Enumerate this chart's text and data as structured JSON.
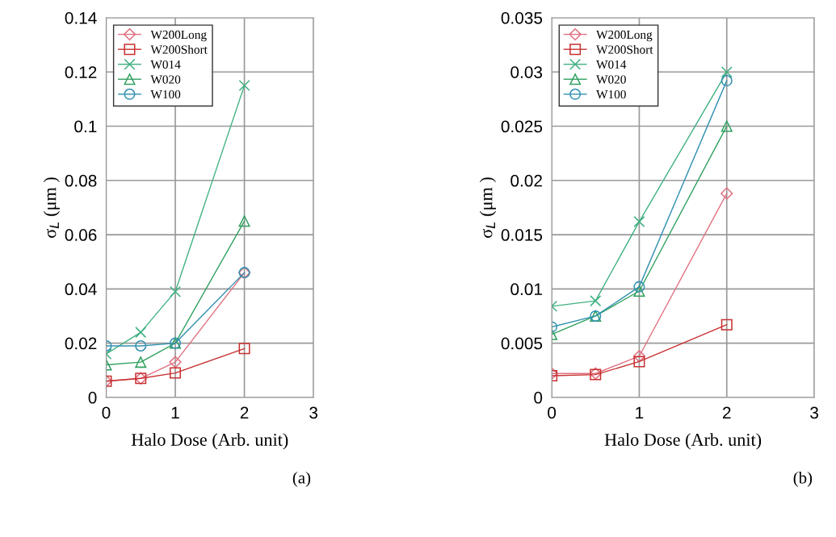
{
  "chart_data": [
    {
      "type": "line",
      "xlabel": "Halo Dose (Arb. unit)",
      "ylabel": "σ$_{L}$ (μm )",
      "x": [
        0,
        0.5,
        1,
        2
      ],
      "xlim": [
        0,
        3
      ],
      "xticks": [
        0,
        1,
        2,
        3
      ],
      "ylim": [
        0,
        0.14
      ],
      "yticks": [
        0,
        0.02,
        0.04,
        0.06,
        0.08,
        0.1,
        0.12,
        0.14
      ],
      "grid": true,
      "legend": "top left",
      "annotations": [
        "(a)"
      ],
      "series": [
        {
          "name": "W200Long",
          "color": "#e07080",
          "marker": "diamond",
          "values": [
            0.006,
            0.007,
            0.013,
            0.046
          ]
        },
        {
          "name": "W200Short",
          "color": "#c83030",
          "marker": "square",
          "values": [
            0.006,
            0.007,
            0.009,
            0.018
          ]
        },
        {
          "name": "W014",
          "color": "#40b080",
          "marker": "cross",
          "values": [
            0.016,
            0.024,
            0.039,
            0.115
          ]
        },
        {
          "name": "W020",
          "color": "#30a060",
          "marker": "triangle",
          "values": [
            0.012,
            0.013,
            0.02,
            0.065
          ]
        },
        {
          "name": "W100",
          "color": "#3090b0",
          "marker": "circle",
          "values": [
            0.019,
            0.019,
            0.02,
            0.046
          ]
        }
      ]
    },
    {
      "type": "line",
      "xlabel": "Halo Dose (Arb. unit)",
      "ylabel": "σ$_{L}$ (μm )",
      "x": [
        0,
        0.5,
        1,
        2
      ],
      "xlim": [
        0,
        3
      ],
      "xticks": [
        0,
        1,
        2,
        3
      ],
      "ylim": [
        0,
        0.035
      ],
      "yticks": [
        0,
        0.005,
        0.01,
        0.015,
        0.02,
        0.025,
        0.03,
        0.035
      ],
      "grid": true,
      "legend": "top left",
      "annotations": [
        "(b)"
      ],
      "series": [
        {
          "name": "W200Long",
          "color": "#e07080",
          "marker": "diamond",
          "values": [
            0.0022,
            0.0022,
            0.0038,
            0.0188
          ]
        },
        {
          "name": "W200Short",
          "color": "#c83030",
          "marker": "square",
          "values": [
            0.002,
            0.0021,
            0.0033,
            0.0067
          ]
        },
        {
          "name": "W014",
          "color": "#40b080",
          "marker": "cross",
          "values": [
            0.0084,
            0.0089,
            0.0162,
            0.03
          ]
        },
        {
          "name": "W020",
          "color": "#30a060",
          "marker": "triangle",
          "values": [
            0.0058,
            0.0075,
            0.0098,
            0.025
          ]
        },
        {
          "name": "W100",
          "color": "#3090b0",
          "marker": "circle",
          "values": [
            0.0065,
            0.0075,
            0.0102,
            0.0292
          ]
        }
      ]
    }
  ]
}
